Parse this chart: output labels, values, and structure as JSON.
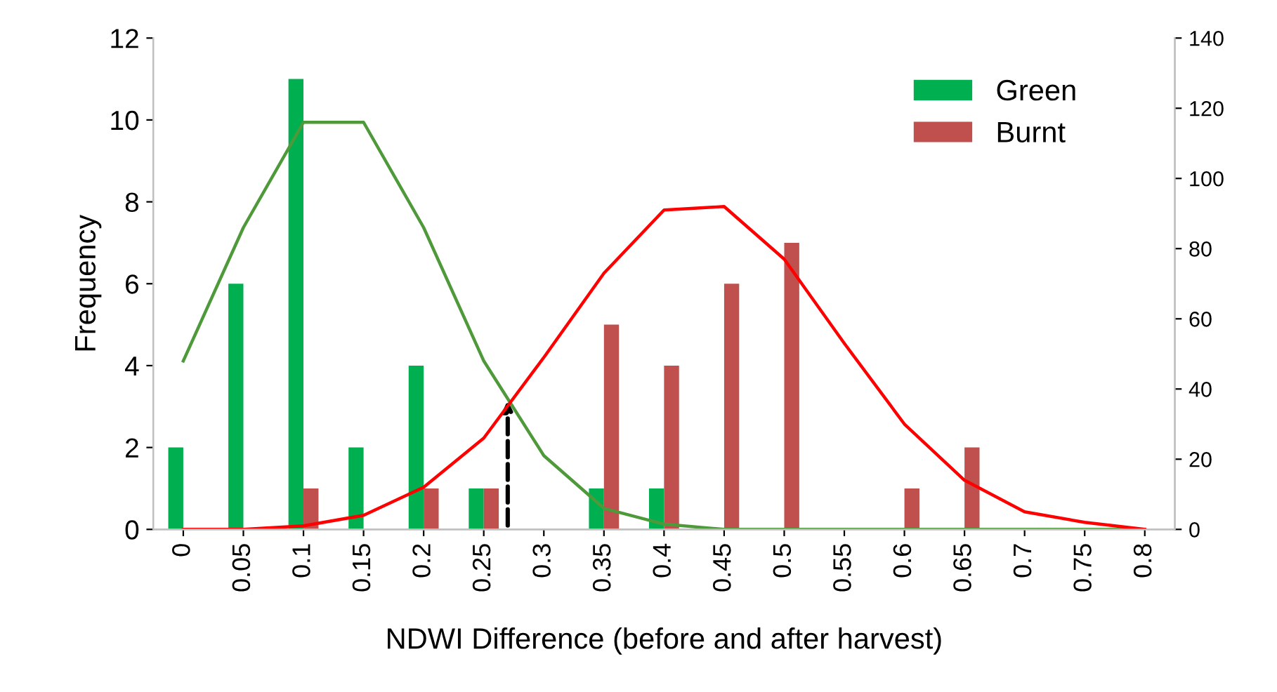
{
  "chart_data": {
    "type": "bar",
    "xlabel": "NDWI Difference (before and after harvest)",
    "ylabel": "Frequency",
    "categories": [
      "0",
      "0.05",
      "0.1",
      "0.15",
      "0.2",
      "0.25",
      "0.3",
      "0.35",
      "0.4",
      "0.45",
      "0.5",
      "0.55",
      "0.6",
      "0.65",
      "0.7",
      "0.75",
      "0.8"
    ],
    "series": [
      {
        "name": "Green",
        "color": "#00b050",
        "values": [
          2,
          6,
          11,
          2,
          4,
          1,
          0,
          1,
          1,
          0,
          0,
          0,
          0,
          0,
          0,
          0,
          0
        ]
      },
      {
        "name": "Burnt",
        "color": "#c0504d",
        "values": [
          0,
          0,
          1,
          0,
          1,
          1,
          0,
          5,
          4,
          6,
          7,
          0,
          1,
          2,
          0,
          0,
          0
        ]
      },
      {
        "type": "line",
        "axis": "y2",
        "color": "#4e9a3a",
        "values": [
          48,
          86,
          116,
          116,
          86,
          48,
          21,
          6,
          1.5,
          0,
          0,
          0,
          0,
          0,
          0,
          0,
          0
        ]
      },
      {
        "type": "line",
        "axis": "y2",
        "color": "#ff0000",
        "values": [
          0,
          0,
          1,
          4,
          12,
          26,
          49,
          73,
          91,
          92,
          77,
          53,
          30,
          14,
          5,
          2,
          0
        ]
      }
    ],
    "ylim": [
      0,
      12
    ],
    "yticks": [
      0,
      2,
      4,
      6,
      8,
      10,
      12
    ],
    "y2lim": [
      0,
      140
    ],
    "y2ticks": [
      0,
      20,
      40,
      60,
      80,
      100,
      120,
      140
    ],
    "grid": false,
    "legend": "top right"
  }
}
